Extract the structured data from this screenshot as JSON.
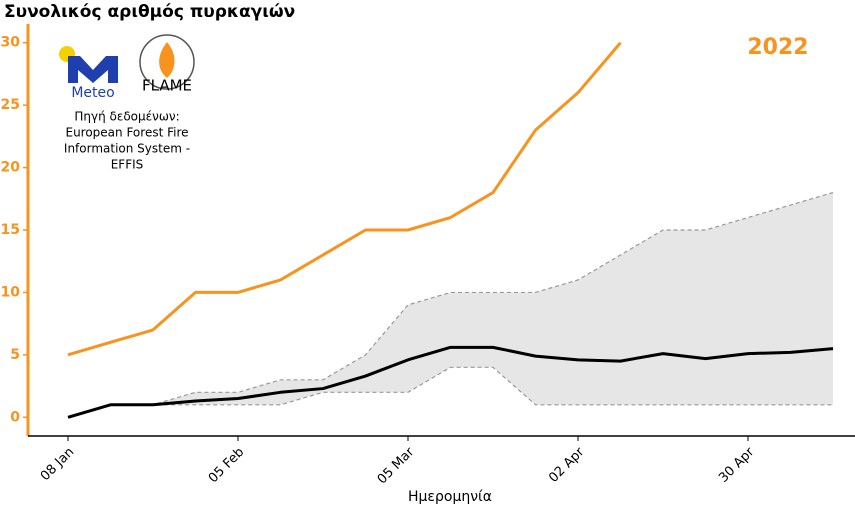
{
  "chart_data": {
    "type": "line",
    "title": "Συνολικός αριθμός πυρκαγιών",
    "x_label": "Ημερομηνία",
    "logo_texts": [
      "Meteo",
      "FLAME"
    ],
    "source_lines": [
      "Πηγή δεδομένων:",
      "European Forest Fire",
      "Information System -",
      "EFFIS"
    ],
    "x": [
      "08 Jan",
      "15 Jan",
      "22 Jan",
      "29 Jan",
      "05 Feb",
      "12 Feb",
      "19 Feb",
      "26 Feb",
      "05 Mar",
      "12 Mar",
      "19 Mar",
      "26 Mar",
      "02 Apr",
      "09 Apr",
      "16 Apr",
      "23 Apr",
      "30 Apr",
      "07 May",
      "14 May"
    ],
    "xticks": [
      "08 Jan",
      "05 Feb",
      "05 Mar",
      "02 Apr",
      "30 Apr"
    ],
    "ylim": [
      -1.5,
      31.5
    ],
    "yticks": [
      0,
      5,
      10,
      15,
      20,
      25,
      30
    ],
    "grid": false,
    "band": {
      "color": "#e6e6e6",
      "line_color": "#999999",
      "upper": [
        0,
        1,
        1,
        2,
        2,
        3,
        3,
        5,
        9,
        10,
        10,
        10,
        11,
        13,
        15,
        15,
        16,
        17,
        18
      ],
      "lower": [
        0,
        1,
        1,
        1,
        1,
        1,
        2,
        2,
        2,
        4,
        4,
        1,
        1,
        1,
        1,
        1,
        1,
        1,
        1
      ]
    },
    "series": [
      {
        "name": "2022",
        "color": "#f7931e",
        "values": [
          5,
          6,
          7,
          10,
          10,
          11,
          13,
          15,
          15,
          16,
          18,
          23,
          26,
          30,
          null,
          null,
          null,
          null,
          null
        ]
      },
      {
        "color": "#000000",
        "values": [
          0,
          1,
          1,
          1.3,
          1.5,
          2,
          2.3,
          3.3,
          4.6,
          5.6,
          5.6,
          4.9,
          4.6,
          4.5,
          5.1,
          4.7,
          5.1,
          5.2,
          5.5
        ]
      }
    ]
  }
}
